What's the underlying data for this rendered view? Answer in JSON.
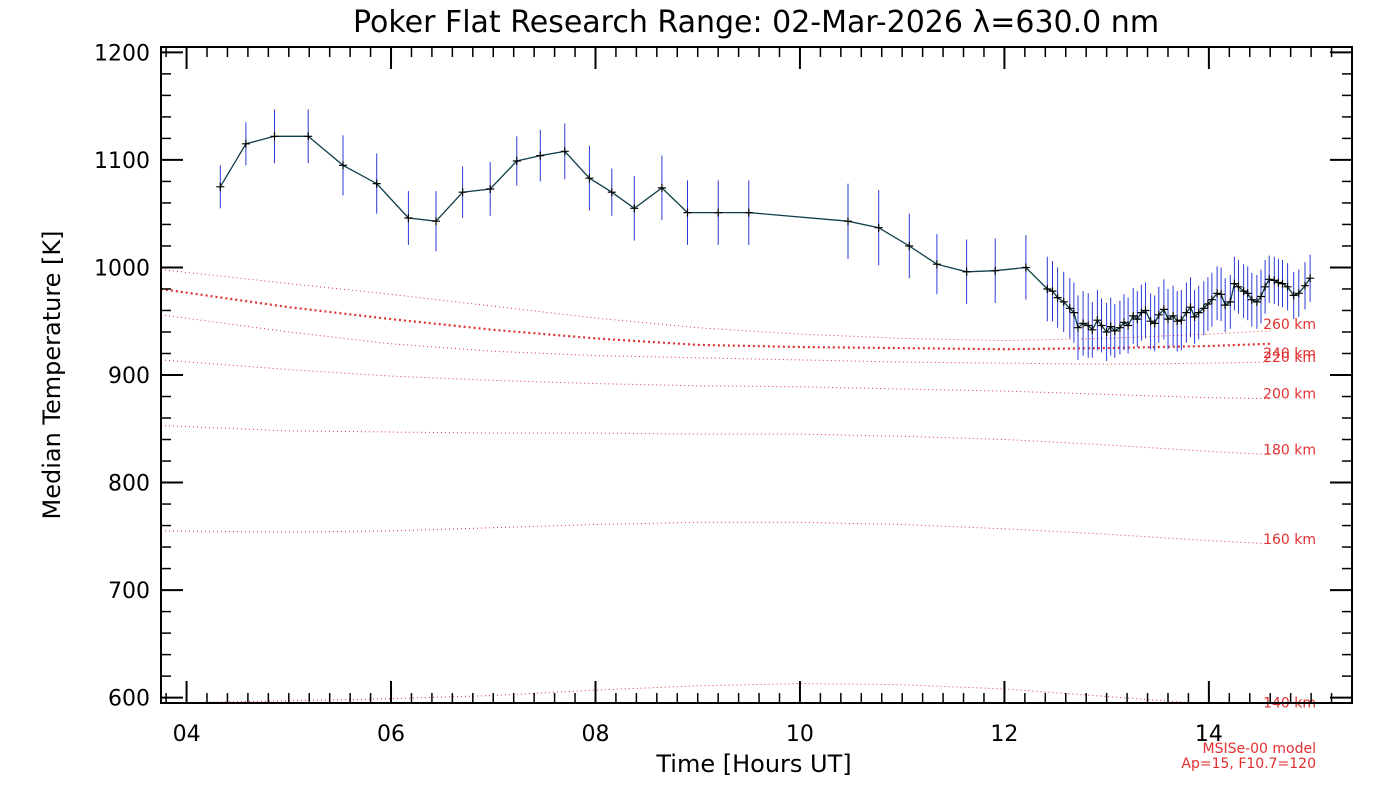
{
  "chart_data": {
    "type": "line",
    "title": "Poker Flat Research Range: 02-Mar-2026 λ=630.0 nm",
    "xlabel": "Time [Hours UT]",
    "ylabel": "Median Temperature [K]",
    "xlim": [
      3.75,
      15.4
    ],
    "ylim": [
      595,
      1205
    ],
    "xticks": [
      4,
      6,
      8,
      10,
      12,
      14
    ],
    "xtick_labels": [
      "04",
      "06",
      "08",
      "10",
      "12",
      "14"
    ],
    "yticks": [
      600,
      700,
      800,
      900,
      1000,
      1100,
      1200
    ],
    "ytick_labels": [
      "600",
      "700",
      "800",
      "900",
      "1000",
      "1100",
      "1200"
    ],
    "colors": {
      "data_line": "#0f3d4a",
      "error_bar": "#2a3bd9",
      "model": "#e23030",
      "axes": "#000000"
    },
    "measurements": {
      "name": "Median temperature",
      "x": [
        4.33,
        4.58,
        4.86,
        5.19,
        5.53,
        5.86,
        6.17,
        6.44,
        6.7,
        6.97,
        7.23,
        7.46,
        7.7,
        7.94,
        8.16,
        8.38,
        8.65,
        8.9,
        9.2,
        9.5,
        10.47,
        10.77,
        11.07,
        11.34,
        11.63,
        11.91,
        12.21,
        12.42,
        12.47,
        12.52,
        12.58,
        12.64,
        12.68,
        12.72,
        12.77,
        12.82,
        12.86,
        12.91,
        12.95,
        13.0,
        13.04,
        13.08,
        13.13,
        13.17,
        13.21,
        13.26,
        13.3,
        13.34,
        13.38,
        13.43,
        13.47,
        13.51,
        13.56,
        13.6,
        13.65,
        13.69,
        13.73,
        13.78,
        13.82,
        13.86,
        13.9,
        13.95,
        13.99,
        14.03,
        14.08,
        14.12,
        14.16,
        14.21,
        14.25,
        14.29,
        14.34,
        14.38,
        14.42,
        14.47,
        14.51,
        14.55,
        14.59,
        14.64,
        14.68,
        14.72,
        14.77,
        14.83,
        14.88,
        14.94,
        14.99
      ],
      "y": [
        1075,
        1115,
        1122,
        1122,
        1095,
        1078,
        1046,
        1043,
        1070,
        1073,
        1099,
        1104,
        1108,
        1083,
        1070,
        1055,
        1074,
        1051,
        1051,
        1051,
        1043,
        1037,
        1020,
        1003,
        996,
        997,
        1000,
        980,
        978,
        972,
        968,
        962,
        958,
        944,
        948,
        946,
        942,
        951,
        946,
        940,
        945,
        941,
        944,
        949,
        946,
        955,
        952,
        958,
        960,
        950,
        948,
        956,
        961,
        952,
        955,
        950,
        951,
        958,
        963,
        954,
        958,
        962,
        966,
        970,
        976,
        975,
        965,
        968,
        985,
        982,
        978,
        976,
        970,
        968,
        973,
        982,
        989,
        988,
        986,
        985,
        982,
        974,
        976,
        983,
        990
      ],
      "err": [
        20,
        20,
        25,
        25,
        28,
        28,
        25,
        28,
        24,
        25,
        23,
        24,
        26,
        30,
        22,
        30,
        30,
        30,
        30,
        30,
        35,
        35,
        30,
        28,
        30,
        30,
        30,
        30,
        28,
        28,
        28,
        28,
        28,
        30,
        30,
        30,
        26,
        28,
        25,
        27,
        27,
        25,
        25,
        26,
        26,
        26,
        26,
        26,
        26,
        26,
        26,
        26,
        28,
        28,
        28,
        28,
        28,
        28,
        28,
        25,
        25,
        25,
        25,
        25,
        25,
        25,
        25,
        25,
        25,
        25,
        25,
        25,
        25,
        25,
        25,
        25,
        22,
        22,
        22,
        22,
        22,
        22,
        22,
        22,
        22
      ]
    },
    "model_curves": [
      {
        "label": "260 km",
        "x": [
          3.75,
          5,
          6,
          7,
          8,
          9,
          10,
          11,
          12,
          13,
          14,
          14.6
        ],
        "y": [
          998,
          985,
          975,
          964,
          953,
          944,
          938,
          934,
          932,
          934,
          938,
          941
        ],
        "style": "dotted-thin"
      },
      {
        "label": "240 km",
        "x": [
          3.75,
          5,
          6,
          7,
          8,
          9,
          10,
          11,
          12,
          13,
          14,
          14.6
        ],
        "y": [
          980,
          963,
          952,
          942,
          934,
          928,
          926,
          925,
          924,
          925,
          927,
          929
        ],
        "style": "dotted-thick"
      },
      {
        "label": "220 km",
        "x": [
          3.75,
          5,
          6,
          7,
          8,
          9,
          10,
          11,
          12,
          13,
          14,
          14.6
        ],
        "y": [
          956,
          940,
          929,
          922,
          918,
          916,
          914,
          912,
          911,
          910,
          911,
          912
        ],
        "style": "dotted-thin"
      },
      {
        "label": "200 km",
        "x": [
          3.75,
          5,
          6,
          7,
          8,
          9,
          10,
          11,
          12,
          13,
          14,
          14.6
        ],
        "y": [
          914,
          905,
          899,
          895,
          892,
          890,
          889,
          887,
          885,
          882,
          879,
          878
        ],
        "style": "dotted-thin"
      },
      {
        "label": "180 km",
        "x": [
          3.75,
          5,
          6,
          7,
          8,
          9,
          10,
          11,
          12,
          13,
          14,
          14.6
        ],
        "y": [
          853,
          848,
          847,
          846,
          846,
          845,
          845,
          843,
          840,
          835,
          829,
          826
        ],
        "style": "dotted-thin"
      },
      {
        "label": "160 km",
        "x": [
          3.75,
          5,
          6,
          7,
          8,
          9,
          10,
          11,
          12,
          13,
          14,
          14.6
        ],
        "y": [
          755,
          754,
          755,
          758,
          761,
          763,
          763,
          761,
          757,
          752,
          746,
          743
        ],
        "style": "dotted-thin"
      },
      {
        "label": "140 km",
        "x": [
          3.75,
          5,
          6,
          7,
          8,
          9,
          10,
          11,
          12,
          13,
          14,
          14.6
        ],
        "y": [
          595,
          597,
          599,
          602,
          607,
          611,
          613,
          612,
          608,
          601,
          594,
          591
        ],
        "style": "dotted-thin"
      }
    ],
    "model_note_lines": [
      "MSISe-00 model",
      "Ap=15, F10.7=120"
    ]
  }
}
